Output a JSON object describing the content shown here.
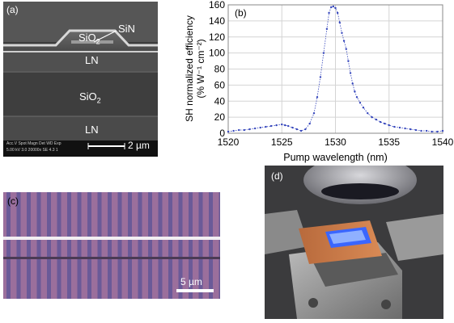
{
  "panel_a": {
    "label": "(a)",
    "layers": {
      "sin": "SiN",
      "sio2_top_main": "SiO",
      "sio2_top_sub": "2",
      "ln_top": "LN",
      "sio2_mid_main": "SiO",
      "sio2_mid_sub": "2",
      "ln_bottom": "LN"
    },
    "scale_bar": "2 µm",
    "info_line1": "Acc.V  Spot Magn   Det  WD  Exp",
    "info_line2": "5.00 kV 3.0  20000x  SE  4.3  1"
  },
  "panel_b": {
    "label": "(b)"
  },
  "panel_c": {
    "label": "(c)",
    "scale_bar": "5 µm"
  },
  "panel_d": {
    "label": "(d)"
  },
  "chart_data": {
    "type": "scatter",
    "xlabel": "Pump wavelength (nm)",
    "ylabel_line1": "SH normalized efficiency",
    "ylabel_line2": "(% W⁻¹ cm⁻²)",
    "xlim": [
      1520,
      1540
    ],
    "ylim": [
      0,
      160
    ],
    "xticks": [
      1520,
      1525,
      1530,
      1535,
      1540
    ],
    "yticks": [
      0,
      20,
      40,
      60,
      80,
      100,
      120,
      140,
      160
    ],
    "grid": true,
    "marker_color": "#3344bb",
    "series": [
      {
        "x": [
          1520.0,
          1520.5,
          1521.0,
          1521.5,
          1522.0,
          1522.5,
          1523.0,
          1523.5,
          1524.0,
          1524.5,
          1525.0,
          1525.3,
          1525.6,
          1526.0,
          1526.4,
          1526.8,
          1527.2,
          1527.6,
          1528.0,
          1528.3,
          1528.6,
          1528.9,
          1529.2,
          1529.4,
          1529.6,
          1529.8,
          1530.0,
          1530.2,
          1530.4,
          1530.6,
          1530.8,
          1531.0,
          1531.2,
          1531.4,
          1531.6,
          1531.8,
          1532.0,
          1532.3,
          1532.6,
          1533.0,
          1533.4,
          1533.8,
          1534.2,
          1534.6,
          1535.0,
          1535.5,
          1536.0,
          1536.5,
          1537.0,
          1537.5,
          1538.0,
          1538.5,
          1539.0,
          1539.5,
          1540.0
        ],
        "y": [
          2,
          3,
          4,
          4,
          5,
          6,
          7,
          8,
          9,
          10,
          11,
          10,
          9,
          7,
          5,
          3,
          5,
          12,
          25,
          45,
          70,
          100,
          130,
          150,
          157,
          158,
          156,
          150,
          138,
          125,
          115,
          105,
          90,
          75,
          62,
          52,
          45,
          38,
          32,
          25,
          20,
          17,
          14,
          12,
          10,
          8,
          7,
          6,
          5,
          4,
          3,
          3,
          2,
          2,
          3
        ]
      }
    ]
  }
}
